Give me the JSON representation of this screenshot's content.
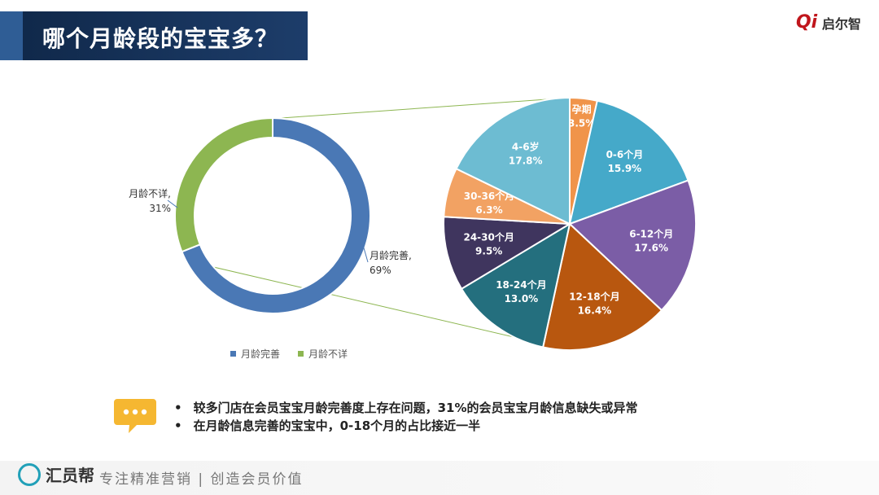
{
  "page": {
    "title": "哪个月龄段的宝宝多？",
    "logo_text": "启尔智",
    "logo_mark": "Qi",
    "footer_brand": "汇员帮",
    "footer_slogan": "专注精准营销 | 创造会员价值",
    "notes": [
      "较多门店在会员宝宝月龄完善度上存在问题，31%的会员宝宝月龄信息缺失或异常",
      "在月龄信息完善的宝宝中，0-18个月的占比接近一半"
    ],
    "bullet": "•"
  },
  "chart_data": [
    {
      "type": "pie",
      "variant": "donut",
      "series": [
        {
          "name": "月龄完善",
          "label": "月龄完善,",
          "value_label": "69%",
          "value": 69,
          "color": "#4a78b5"
        },
        {
          "name": "月龄不详",
          "label": "月龄不详,",
          "value_label": "31%",
          "value": 31,
          "color": "#8db651"
        }
      ],
      "legend": {
        "placement": "bottom"
      }
    },
    {
      "type": "pie",
      "series": [
        {
          "name": "孕期",
          "value": 3.5,
          "value_label": "3.5%",
          "color": "#f0944a"
        },
        {
          "name": "0-6个月",
          "value": 15.9,
          "value_label": "15.9%",
          "color": "#45a9c9"
        },
        {
          "name": "6-12个月",
          "value": 17.6,
          "value_label": "17.6%",
          "color": "#7b5da6"
        },
        {
          "name": "12-18个月",
          "value": 16.4,
          "value_label": "16.4%",
          "color": "#b8570f"
        },
        {
          "name": "18-24个月",
          "value": 13.0,
          "value_label": "13.0%",
          "color": "#246f7e"
        },
        {
          "name": "24-30个月",
          "value": 9.5,
          "value_label": "9.5%",
          "color": "#3f355e"
        },
        {
          "name": "30-36个月",
          "value": 6.3,
          "value_label": "6.3%",
          "color": "#f2a263"
        },
        {
          "name": "4-6岁",
          "value": 17.8,
          "value_label": "17.8%",
          "color": "#6dbcd2"
        }
      ]
    }
  ]
}
